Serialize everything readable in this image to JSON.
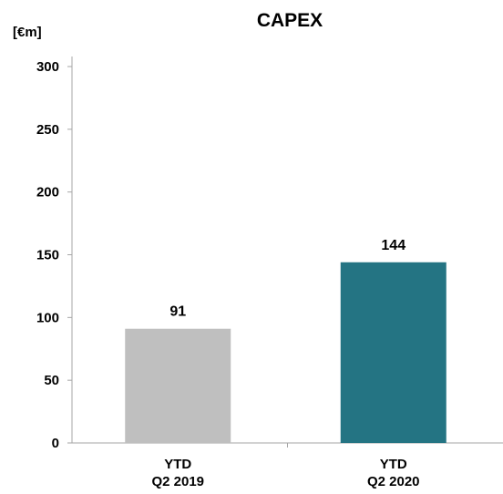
{
  "chart_data": {
    "type": "bar",
    "title": "CAPEX",
    "ylabel": "[€m]",
    "xlabel": "",
    "categories": [
      [
        "YTD",
        "Q2 2019"
      ],
      [
        "YTD",
        "Q2 2020"
      ]
    ],
    "values": [
      91,
      144
    ],
    "data_labels": [
      "91",
      "144"
    ],
    "bar_colors": [
      "#bfbfbf",
      "#247483"
    ],
    "ylim": [
      0,
      300
    ],
    "yticks": [
      0,
      50,
      100,
      150,
      200,
      250,
      300
    ],
    "grid": false,
    "legend": "none"
  }
}
